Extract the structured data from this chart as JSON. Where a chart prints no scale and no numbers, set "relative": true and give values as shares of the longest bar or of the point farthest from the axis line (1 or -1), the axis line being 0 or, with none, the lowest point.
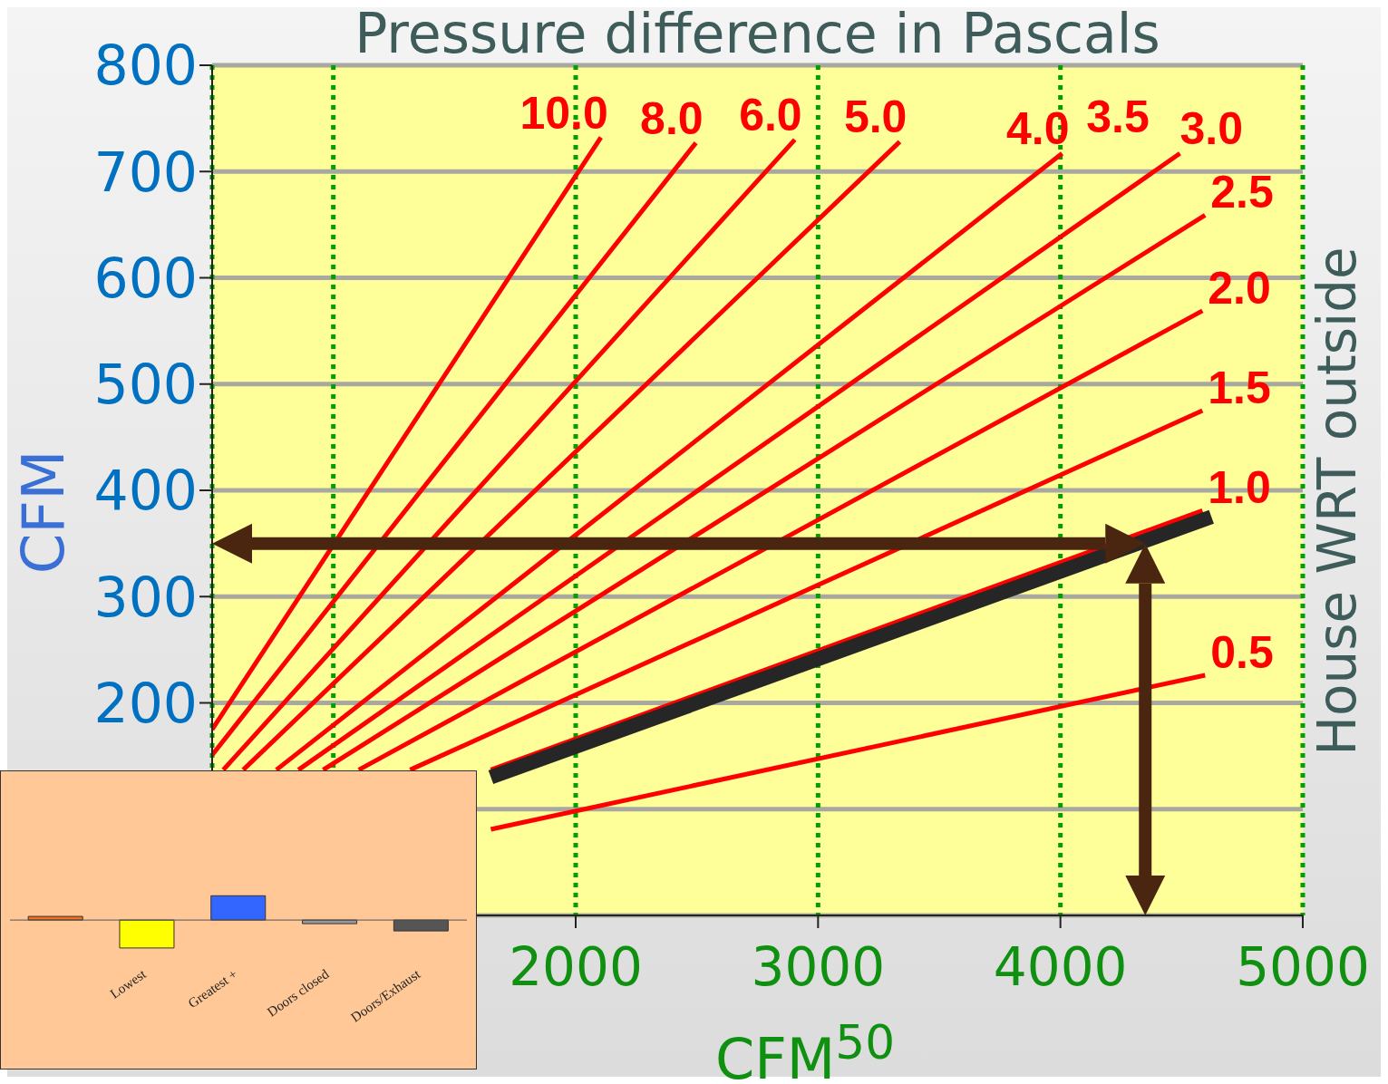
{
  "chart_data": [
    {
      "type": "line",
      "title": "Pressure difference in Pascals",
      "xlabel": "CFM$^{50}$",
      "ylabel": "CFM",
      "y2label": "House WRT outside",
      "xlim": [
        500,
        5000
      ],
      "ylim": [
        0,
        800
      ],
      "xticks": [
        {
          "value": 1000,
          "label": null
        },
        2000,
        3000,
        4000,
        5000
      ],
      "yticks": [
        {
          "value": 0,
          "label": null
        },
        {
          "value": 100,
          "label": null
        },
        200,
        300,
        400,
        500,
        600,
        700,
        800
      ],
      "grid": true,
      "marker": "none",
      "line_style": "solid",
      "series": [
        {
          "name": "10.0",
          "color": "#ff0000",
          "x": [
            500,
            2104
          ],
          "values": [
            175,
            732
          ]
        },
        {
          "name": "8.0",
          "color": "#ff0000",
          "x": [
            500,
            2496
          ],
          "values": [
            151,
            727
          ]
        },
        {
          "name": "6.0",
          "color": "#ff0000",
          "x": [
            546,
            2904
          ],
          "values": [
            137,
            730
          ]
        },
        {
          "name": "5.0",
          "color": "#ff0000",
          "x": [
            628,
            3337
          ],
          "values": [
            137,
            728
          ]
        },
        {
          "name": "4.0",
          "color": "#ff0000",
          "x": [
            765,
            4007
          ],
          "values": [
            137,
            717
          ]
        },
        {
          "name": "3.0",
          "color": "#ff0000",
          "x": [
            856,
            4493
          ],
          "values": [
            137,
            717
          ]
        },
        {
          "name": "2.5",
          "color": "#ff0000",
          "x": [
            958,
            4597
          ],
          "values": [
            137,
            659
          ]
        },
        {
          "name": "2.0",
          "color": "#ff0000",
          "x": [
            1105,
            4586
          ],
          "values": [
            137,
            569
          ]
        },
        {
          "name": "1.5",
          "color": "#ff0000",
          "x": [
            1317,
            4586
          ],
          "values": [
            137,
            475
          ]
        },
        {
          "name": "1.0",
          "color": "#ff0000",
          "x": [
            1650,
            4586
          ],
          "values": [
            137,
            381
          ]
        },
        {
          "color": "#262626",
          "x": [
            1650,
            4623
          ],
          "values": [
            130,
            375
          ]
        },
        {
          "name": "0.5",
          "color": "#ff0000",
          "x": [
            1650,
            4597
          ],
          "values": [
            81,
            226
          ]
        }
      ],
      "annotations": [
        "3.5"
      ],
      "ref_lines": [
        {
          "axis": "y",
          "value": 350,
          "color": "#4a2510"
        },
        {
          "axis": "x",
          "value": 4350,
          "color": "#4a2510"
        }
      ]
    },
    {
      "type": "bar",
      "relative": true,
      "categories": [
        null,
        "Lowest",
        "Greatest +",
        "Doors closed",
        "Doors/Exhaust"
      ],
      "values": [
        0.13,
        -1,
        0.87,
        -0.13,
        -0.39
      ],
      "colors": [
        "#f07020",
        "#ffff00",
        "#3366ff",
        "#999999",
        "#555555"
      ]
    }
  ]
}
